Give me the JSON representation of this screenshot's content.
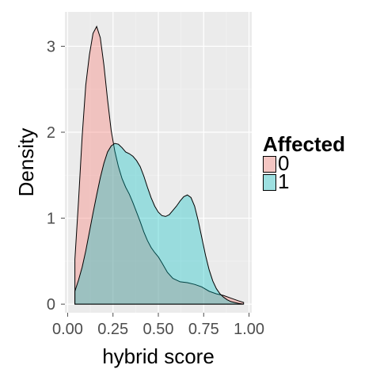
{
  "chart_data": {
    "type": "area",
    "xlabel": "hybrid score",
    "ylabel": "Density",
    "xlim": [
      0,
      1.0
    ],
    "ylim": [
      -0.1,
      3.4
    ],
    "x_ticks": [
      0.0,
      0.25,
      0.5,
      0.75,
      1.0
    ],
    "x_tick_labels": [
      "0.00",
      "0.25",
      "0.50",
      "0.75",
      "1.00"
    ],
    "y_ticks": [
      0,
      1,
      2,
      3
    ],
    "y_tick_labels": [
      "0",
      "1",
      "2",
      "3"
    ],
    "grid": true,
    "legend": {
      "title": "Affected",
      "position": "right",
      "entries": [
        {
          "label": "0",
          "color": "#F8766D"
        },
        {
          "label": "1",
          "color": "#00BFC4"
        }
      ]
    },
    "series": [
      {
        "name": "0",
        "color": "#F8766D",
        "x": [
          0.04,
          0.04,
          0.06,
          0.08,
          0.1,
          0.12,
          0.14,
          0.16,
          0.18,
          0.2,
          0.22,
          0.24,
          0.26,
          0.28,
          0.3,
          0.32,
          0.34,
          0.36,
          0.38,
          0.4,
          0.42,
          0.44,
          0.46,
          0.48,
          0.5,
          0.52,
          0.55,
          0.58,
          0.62,
          0.66,
          0.7,
          0.74,
          0.78,
          0.82,
          0.86,
          0.9,
          0.94,
          0.97,
          0.97
        ],
        "y": [
          0.0,
          0.52,
          1.2,
          1.95,
          2.55,
          2.9,
          3.15,
          3.23,
          3.1,
          2.78,
          2.38,
          2.02,
          1.78,
          1.6,
          1.46,
          1.36,
          1.28,
          1.18,
          1.07,
          0.96,
          0.84,
          0.74,
          0.66,
          0.6,
          0.55,
          0.48,
          0.37,
          0.3,
          0.26,
          0.25,
          0.23,
          0.2,
          0.15,
          0.12,
          0.1,
          0.07,
          0.04,
          0.02,
          0.0
        ]
      },
      {
        "name": "1",
        "color": "#00BFC4",
        "x": [
          0.04,
          0.04,
          0.06,
          0.08,
          0.1,
          0.12,
          0.14,
          0.16,
          0.18,
          0.2,
          0.22,
          0.24,
          0.26,
          0.28,
          0.3,
          0.32,
          0.34,
          0.36,
          0.38,
          0.4,
          0.42,
          0.44,
          0.46,
          0.48,
          0.5,
          0.52,
          0.54,
          0.56,
          0.58,
          0.6,
          0.62,
          0.64,
          0.66,
          0.68,
          0.7,
          0.72,
          0.74,
          0.76,
          0.78,
          0.8,
          0.82,
          0.84,
          0.86,
          0.88,
          0.9,
          0.92,
          0.94,
          0.97,
          0.97
        ],
        "y": [
          0.0,
          0.15,
          0.28,
          0.43,
          0.62,
          0.84,
          1.06,
          1.27,
          1.47,
          1.64,
          1.77,
          1.84,
          1.87,
          1.86,
          1.82,
          1.77,
          1.75,
          1.72,
          1.67,
          1.6,
          1.49,
          1.36,
          1.24,
          1.14,
          1.07,
          1.03,
          1.02,
          1.04,
          1.09,
          1.14,
          1.2,
          1.25,
          1.27,
          1.24,
          1.14,
          0.97,
          0.77,
          0.57,
          0.4,
          0.27,
          0.18,
          0.12,
          0.08,
          0.05,
          0.03,
          0.02,
          0.01,
          0.0,
          0.0
        ]
      }
    ]
  }
}
